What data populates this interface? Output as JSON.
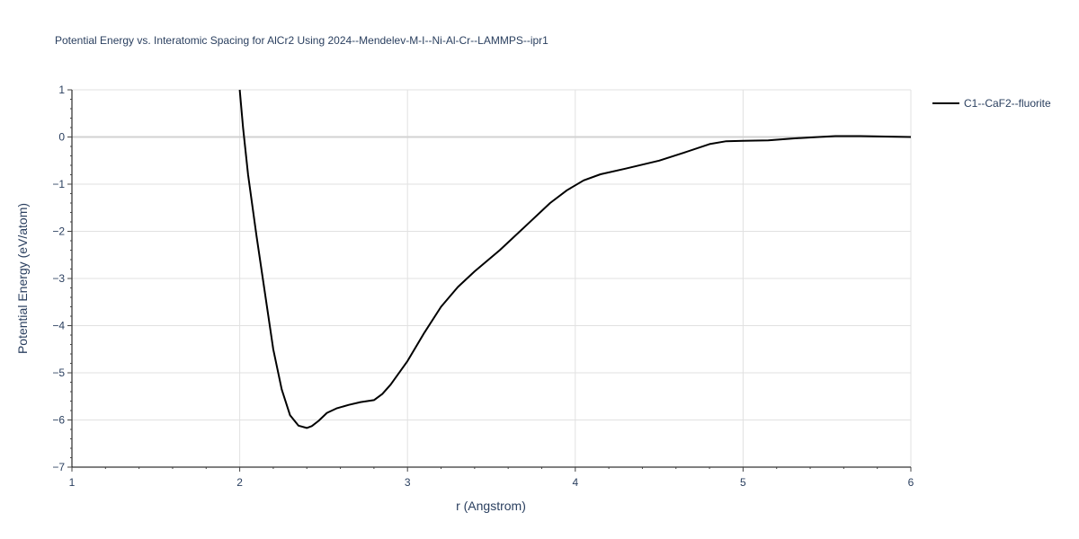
{
  "chart_data": {
    "type": "line",
    "title": "Potential Energy vs. Interatomic Spacing for AlCr2 Using 2024--Mendelev-M-I--Ni-Al-Cr--LAMMPS--ipr1",
    "xlabel": "r (Angstrom)",
    "ylabel": "Potential Energy (eV/atom)",
    "xlim": [
      1,
      6
    ],
    "ylim": [
      -7,
      1
    ],
    "x_ticks": [
      1,
      2,
      3,
      4,
      5,
      6
    ],
    "y_ticks": [
      1,
      0,
      -1,
      -2,
      -3,
      -4,
      -5,
      -6,
      -7
    ],
    "x_tick_labels": [
      "1",
      "2",
      "3",
      "4",
      "5",
      "6"
    ],
    "y_tick_labels": [
      "1",
      "0",
      "−1",
      "−2",
      "−3",
      "−4",
      "−5",
      "−6",
      "−7"
    ],
    "grid": true,
    "legend_position": "top-right",
    "series": [
      {
        "name": "C1--CaF2--fluorite",
        "color": "#000000",
        "x": [
          2.0,
          2.02,
          2.05,
          2.1,
          2.15,
          2.2,
          2.25,
          2.3,
          2.35,
          2.4,
          2.43,
          2.47,
          2.52,
          2.58,
          2.65,
          2.72,
          2.8,
          2.85,
          2.9,
          3.0,
          3.1,
          3.2,
          3.3,
          3.4,
          3.55,
          3.7,
          3.85,
          3.95,
          4.05,
          4.15,
          4.3,
          4.5,
          4.65,
          4.8,
          4.9,
          5.0,
          5.15,
          5.3,
          5.45,
          5.55,
          5.7,
          5.85,
          6.0
        ],
        "y": [
          1.0,
          0.2,
          -0.8,
          -2.1,
          -3.3,
          -4.5,
          -5.35,
          -5.9,
          -6.12,
          -6.17,
          -6.13,
          -6.02,
          -5.85,
          -5.75,
          -5.68,
          -5.62,
          -5.58,
          -5.45,
          -5.25,
          -4.75,
          -4.15,
          -3.6,
          -3.18,
          -2.85,
          -2.4,
          -1.9,
          -1.4,
          -1.13,
          -0.92,
          -0.79,
          -0.67,
          -0.5,
          -0.33,
          -0.15,
          -0.09,
          -0.08,
          -0.07,
          -0.03,
          0.0,
          0.02,
          0.02,
          0.01,
          0.0
        ]
      }
    ]
  }
}
